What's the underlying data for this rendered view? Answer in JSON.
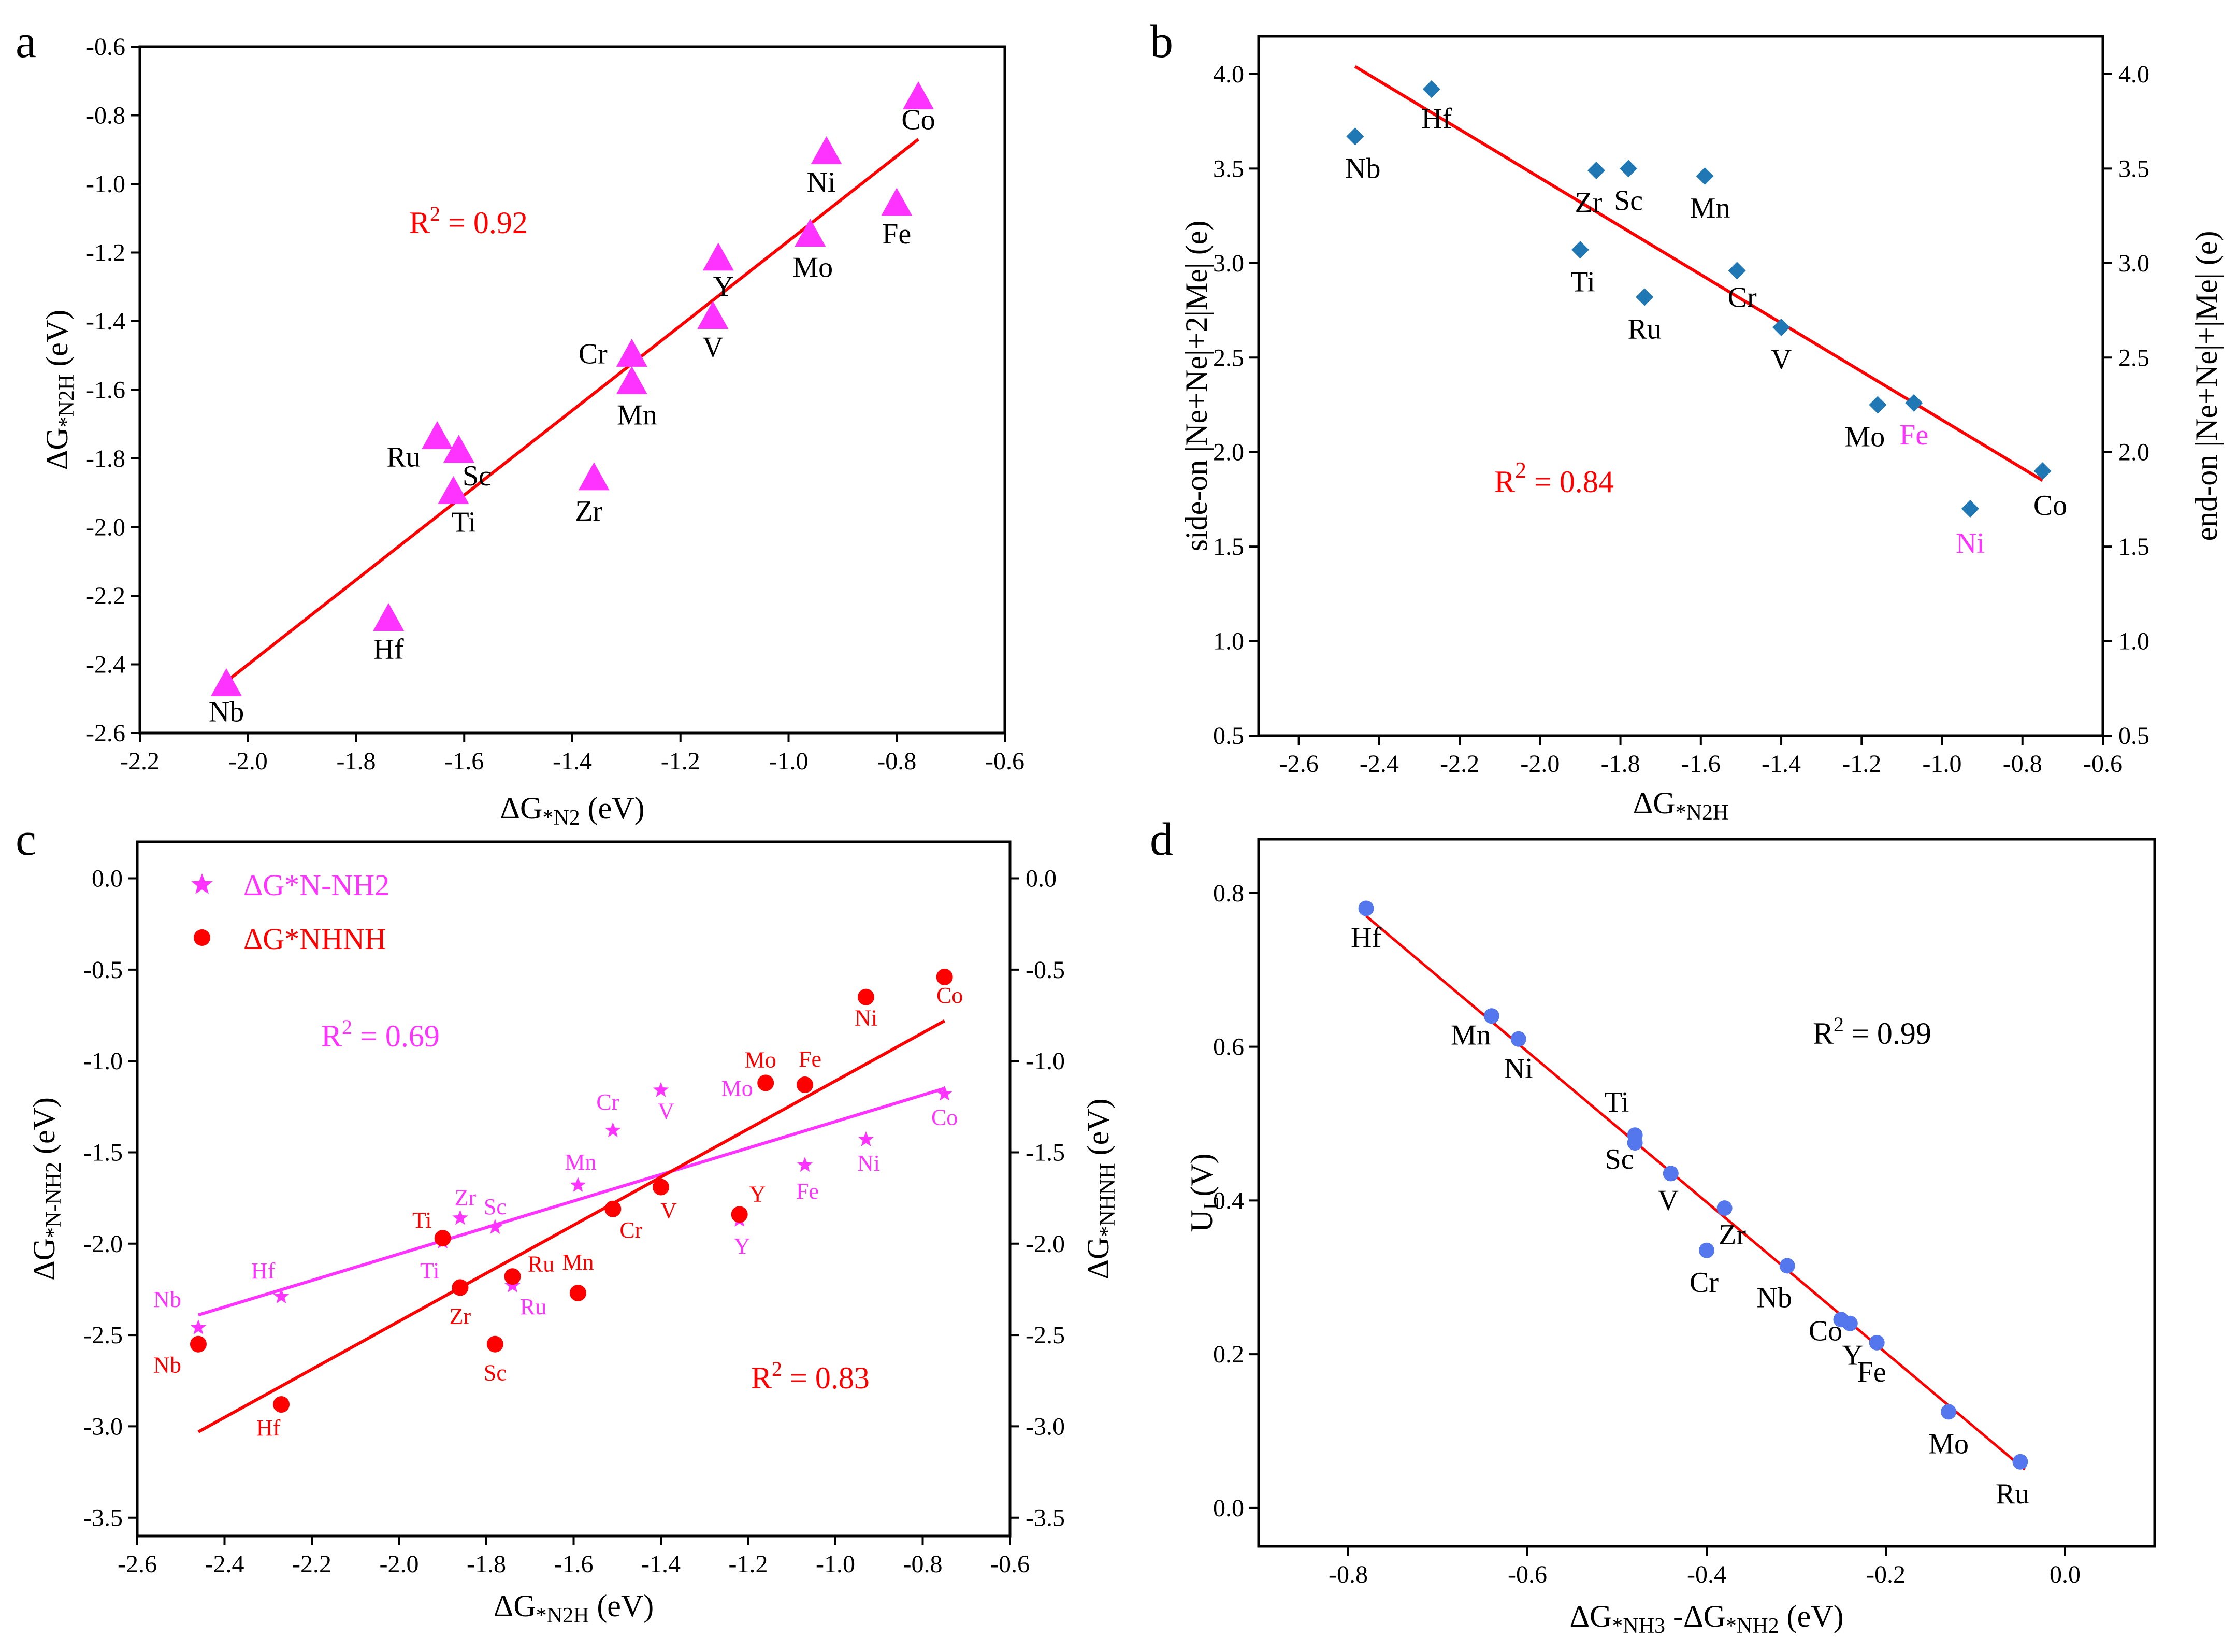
{
  "colors": {
    "magenta": "#ff33ff",
    "red": "#ff0000",
    "blue": "#1f77b4",
    "blue_d": "#5577ee",
    "black": "#000000"
  },
  "chart_data": [
    {
      "id": "a",
      "type": "scatter",
      "panel_letter": "a",
      "xlabel_main": "ΔG",
      "xlabel_sub": "*N2",
      "xlabel_tail": " (eV)",
      "ylabel_main": "ΔG",
      "ylabel_sub": "*N2H",
      "ylabel_tail": " (eV)",
      "xlim": [
        -2.2,
        -0.6
      ],
      "ylim": [
        -2.6,
        -0.6
      ],
      "xticks": [
        -2.2,
        -2.0,
        -1.8,
        -1.6,
        -1.4,
        -1.2,
        -1.0,
        -0.8,
        -0.6
      ],
      "xtick_labels": [
        "-2.2",
        "-2.0",
        "-1.8",
        "-1.6",
        "-1.4",
        "-1.2",
        "-1.0",
        "-0.8",
        "-0.6"
      ],
      "yticks": [
        -2.6,
        -2.4,
        -2.2,
        -2.0,
        -1.8,
        -1.6,
        -1.4,
        -1.2,
        -1.0,
        -0.8,
        -0.6
      ],
      "ytick_labels": [
        "-2.6",
        "-2.4",
        "-2.2",
        "-2.0",
        "-1.8",
        "-1.6",
        "-1.4",
        "-1.2",
        "-1.0",
        "-0.8",
        "-0.6"
      ],
      "r2_label": "R",
      "r2_exp": "2",
      "r2_value": " = 0.92",
      "fit": {
        "x1": -2.04,
        "y1": -2.45,
        "x2": -0.76,
        "y2": -0.87
      },
      "points": [
        {
          "label": "Co",
          "x": -0.76,
          "y": -0.75
        },
        {
          "label": "Ni",
          "x": -0.93,
          "y": -0.91
        },
        {
          "label": "Fe",
          "x": -0.8,
          "y": -1.06
        },
        {
          "label": "Mo",
          "x": -0.96,
          "y": -1.15
        },
        {
          "label": "Y",
          "x": -1.13,
          "y": -1.22
        },
        {
          "label": "V",
          "x": -1.14,
          "y": -1.39
        },
        {
          "label": "Cr",
          "x": -1.29,
          "y": -1.5
        },
        {
          "label": "Mn",
          "x": -1.29,
          "y": -1.58
        },
        {
          "label": "Ru",
          "x": -1.65,
          "y": -1.74
        },
        {
          "label": "Sc",
          "x": -1.61,
          "y": -1.78
        },
        {
          "label": "Ti",
          "x": -1.62,
          "y": -1.9
        },
        {
          "label": "Zr",
          "x": -1.36,
          "y": -1.86
        },
        {
          "label": "Hf",
          "x": -1.74,
          "y": -2.27
        },
        {
          "label": "Nb",
          "x": -2.04,
          "y": -2.46
        }
      ]
    },
    {
      "id": "b",
      "type": "scatter",
      "panel_letter": "b",
      "xlabel_main": "ΔG",
      "xlabel_sub": "*N2H",
      "xlabel_tail": "",
      "ylabel_left": "side-on |Ne+Ne|+2|Me| (e)",
      "ylabel_right": "end-on |Ne+Ne|+|Me| (e)",
      "xlim": [
        -2.7,
        -0.6
      ],
      "ylim": [
        0.5,
        4.2
      ],
      "xticks": [
        -2.6,
        -2.4,
        -2.2,
        -2.0,
        -1.8,
        -1.6,
        -1.4,
        -1.2,
        -1.0,
        -0.8,
        -0.6
      ],
      "xtick_labels": [
        "-2.6",
        "-2.4",
        "-2.2",
        "-2.0",
        "-1.8",
        "-1.6",
        "-1.4",
        "-1.2",
        "-1.0",
        "-0.8",
        "-0.6"
      ],
      "yticks": [
        0.5,
        1.0,
        1.5,
        2.0,
        2.5,
        3.0,
        3.5,
        4.0
      ],
      "ytick_labels": [
        "0.5",
        "1.0",
        "1.5",
        "2.0",
        "2.5",
        "3.0",
        "3.5",
        "4.0"
      ],
      "r2_label": "R",
      "r2_exp": "2",
      "r2_value": " = 0.84",
      "fit": {
        "x1": -2.46,
        "y1": 4.04,
        "x2": -0.75,
        "y2": 1.85
      },
      "points": [
        {
          "label": "Nb",
          "x": -2.46,
          "y": 3.67,
          "color": "black"
        },
        {
          "label": "Hf",
          "x": -2.27,
          "y": 3.92,
          "color": "black"
        },
        {
          "label": "Zr",
          "x": -1.86,
          "y": 3.49,
          "color": "black"
        },
        {
          "label": "Sc",
          "x": -1.78,
          "y": 3.5,
          "color": "black"
        },
        {
          "label": "Mn",
          "x": -1.59,
          "y": 3.46,
          "color": "black"
        },
        {
          "label": "Ti",
          "x": -1.9,
          "y": 3.07,
          "color": "black"
        },
        {
          "label": "Ru",
          "x": -1.74,
          "y": 2.82,
          "color": "black"
        },
        {
          "label": "Cr",
          "x": -1.51,
          "y": 2.96,
          "color": "black"
        },
        {
          "label": "V",
          "x": -1.4,
          "y": 2.66,
          "color": "black"
        },
        {
          "label": "Mo",
          "x": -1.16,
          "y": 2.25,
          "color": "black"
        },
        {
          "label": "Fe",
          "x": -1.07,
          "y": 2.26,
          "color": "magenta"
        },
        {
          "label": "Co",
          "x": -0.75,
          "y": 1.9,
          "color": "black"
        },
        {
          "label": "Ni",
          "x": -0.93,
          "y": 1.7,
          "color": "magenta"
        }
      ]
    },
    {
      "id": "c",
      "type": "scatter",
      "panel_letter": "c",
      "xlabel_main": "ΔG",
      "xlabel_sub": "*N2H",
      "xlabel_tail": " (eV)",
      "ylabel_left_main": "ΔG",
      "ylabel_left_sub": "*N-NH2",
      "ylabel_left_tail": " (eV)",
      "ylabel_right_main": "ΔG",
      "ylabel_right_sub": "*NHNH",
      "ylabel_right_tail": " (eV)",
      "xlim": [
        -2.6,
        -0.6
      ],
      "ylim": [
        -3.6,
        0.2
      ],
      "xticks": [
        -2.6,
        -2.4,
        -2.2,
        -2.0,
        -1.8,
        -1.6,
        -1.4,
        -1.2,
        -1.0,
        -0.8,
        -0.6
      ],
      "xtick_labels": [
        "-2.6",
        "-2.4",
        "-2.2",
        "-2.0",
        "-1.8",
        "-1.6",
        "-1.4",
        "-1.2",
        "-1.0",
        "-0.8",
        "-0.6"
      ],
      "yticks": [
        -3.5,
        -3.0,
        -2.5,
        -2.0,
        -1.5,
        -1.0,
        -0.5,
        0.0
      ],
      "ytick_labels": [
        "-3.5",
        "-3.0",
        "-2.5",
        "-2.0",
        "-1.5",
        "-1.0",
        "-0.5",
        "0.0"
      ],
      "legend": [
        {
          "name": "ΔG*N-NH2",
          "color": "magenta",
          "marker": "star"
        },
        {
          "name": "ΔG*NHNH",
          "color": "red",
          "marker": "circle"
        }
      ],
      "series": [
        {
          "name": "ΔG*N-NH2",
          "color": "magenta",
          "marker": "star",
          "r2_label": "R",
          "r2_exp": "2",
          "r2_value": " = 0.69",
          "fit": {
            "x1": -2.46,
            "y1": -2.39,
            "x2": -0.75,
            "y2": -1.15
          },
          "points": [
            {
              "label": "Nb",
              "x": -2.46,
              "y": -2.46
            },
            {
              "label": "Hf",
              "x": -2.27,
              "y": -2.29
            },
            {
              "label": "Ti",
              "x": -1.9,
              "y": -1.99
            },
            {
              "label": "Zr",
              "x": -1.86,
              "y": -1.86
            },
            {
              "label": "Sc",
              "x": -1.78,
              "y": -1.91
            },
            {
              "label": "Ru",
              "x": -1.74,
              "y": -2.23
            },
            {
              "label": "Mn",
              "x": -1.59,
              "y": -1.68
            },
            {
              "label": "Cr",
              "x": -1.51,
              "y": -1.38
            },
            {
              "label": "V",
              "x": -1.4,
              "y": -1.16
            },
            {
              "label": "Y",
              "x": -1.22,
              "y": -1.87
            },
            {
              "label": "Mo",
              "x": -1.16,
              "y": -1.12
            },
            {
              "label": "Fe",
              "x": -1.07,
              "y": -1.57
            },
            {
              "label": "Ni",
              "x": -0.93,
              "y": -1.43
            },
            {
              "label": "Co",
              "x": -0.75,
              "y": -1.18
            }
          ]
        },
        {
          "name": "ΔG*NHNH",
          "color": "red",
          "marker": "circle",
          "r2_label": "R",
          "r2_exp": "2",
          "r2_value": " = 0.83",
          "fit": {
            "x1": -2.46,
            "y1": -3.03,
            "x2": -0.75,
            "y2": -0.78
          },
          "points": [
            {
              "label": "Nb",
              "x": -2.46,
              "y": -2.55
            },
            {
              "label": "Hf",
              "x": -2.27,
              "y": -2.88
            },
            {
              "label": "Ti",
              "x": -1.9,
              "y": -1.97
            },
            {
              "label": "Zr",
              "x": -1.86,
              "y": -2.24
            },
            {
              "label": "Sc",
              "x": -1.78,
              "y": -2.55
            },
            {
              "label": "Ru",
              "x": -1.74,
              "y": -2.18
            },
            {
              "label": "Mn",
              "x": -1.59,
              "y": -2.27
            },
            {
              "label": "Cr",
              "x": -1.51,
              "y": -1.81
            },
            {
              "label": "V",
              "x": -1.4,
              "y": -1.69
            },
            {
              "label": "Y",
              "x": -1.22,
              "y": -1.84
            },
            {
              "label": "Mo",
              "x": -1.16,
              "y": -1.12
            },
            {
              "label": "Fe",
              "x": -1.07,
              "y": -1.13
            },
            {
              "label": "Ni",
              "x": -0.93,
              "y": -0.65
            },
            {
              "label": "Co",
              "x": -0.75,
              "y": -0.54
            }
          ]
        }
      ]
    },
    {
      "id": "d",
      "type": "scatter",
      "panel_letter": "d",
      "xlabel": "ΔG*NH3 -ΔG*NH2 (eV)",
      "xlabel_a_main": "ΔG",
      "xlabel_a_sub": "*NH3",
      "xlabel_mid": " -ΔG",
      "xlabel_b_sub": "*NH2",
      "xlabel_tail": " (eV)",
      "ylabel_main": "U",
      "ylabel_sub": "L",
      "ylabel_tail": "(V)",
      "xlim": [
        -0.9,
        0.1
      ],
      "ylim": [
        -0.05,
        0.87
      ],
      "xticks": [
        -0.8,
        -0.6,
        -0.4,
        -0.2,
        0.0
      ],
      "xtick_labels": [
        "-0.8",
        "-0.6",
        "-0.4",
        "-0.2",
        "0.0"
      ],
      "yticks": [
        0.0,
        0.2,
        0.4,
        0.6,
        0.8
      ],
      "ytick_labels": [
        "0.0",
        "0.2",
        "0.4",
        "0.6",
        "0.8"
      ],
      "r2_label": "R",
      "r2_exp": "2",
      "r2_value": " = 0.99",
      "fit": {
        "x1": -0.78,
        "y1": 0.77,
        "x2": -0.045,
        "y2": 0.05
      },
      "points": [
        {
          "label": "Hf",
          "x": -0.78,
          "y": 0.78
        },
        {
          "label": "Mn",
          "x": -0.64,
          "y": 0.64
        },
        {
          "label": "Ni",
          "x": -0.61,
          "y": 0.61
        },
        {
          "label": "Ti",
          "x": -0.48,
          "y": 0.485
        },
        {
          "label": "Sc",
          "x": -0.48,
          "y": 0.475
        },
        {
          "label": "V",
          "x": -0.44,
          "y": 0.435
        },
        {
          "label": "Zr",
          "x": -0.38,
          "y": 0.39
        },
        {
          "label": "Cr",
          "x": -0.4,
          "y": 0.335
        },
        {
          "label": "Nb",
          "x": -0.31,
          "y": 0.315
        },
        {
          "label": "Co",
          "x": -0.25,
          "y": 0.245
        },
        {
          "label": "Y",
          "x": -0.24,
          "y": 0.24
        },
        {
          "label": "Fe",
          "x": -0.21,
          "y": 0.215
        },
        {
          "label": "Mo",
          "x": -0.13,
          "y": 0.125
        },
        {
          "label": "Ru",
          "x": -0.05,
          "y": 0.06
        }
      ]
    }
  ]
}
